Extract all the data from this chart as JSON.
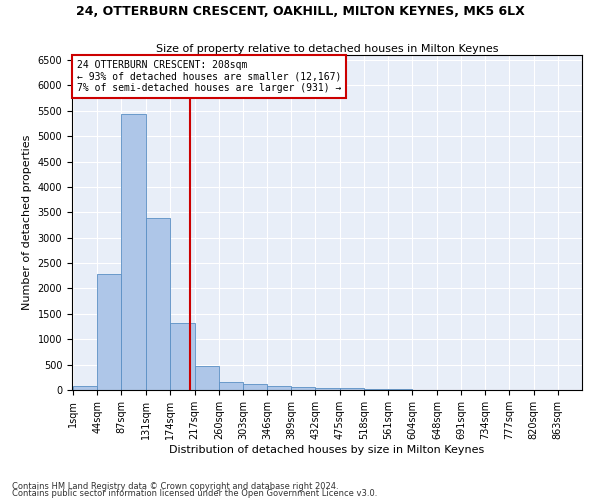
{
  "title1": "24, OTTERBURN CRESCENT, OAKHILL, MILTON KEYNES, MK5 6LX",
  "title2": "Size of property relative to detached houses in Milton Keynes",
  "xlabel": "Distribution of detached houses by size in Milton Keynes",
  "ylabel": "Number of detached properties",
  "property_size": 208,
  "annotation_line1": "24 OTTERBURN CRESCENT: 208sqm",
  "annotation_line2": "← 93% of detached houses are smaller (12,167)",
  "annotation_line3": "7% of semi-detached houses are larger (931) →",
  "footer1": "Contains HM Land Registry data © Crown copyright and database right 2024.",
  "footer2": "Contains public sector information licensed under the Open Government Licence v3.0.",
  "bin_edges": [
    1,
    44,
    87,
    131,
    174,
    217,
    260,
    303,
    346,
    389,
    432,
    475,
    518,
    561,
    604,
    648,
    691,
    734,
    777,
    820,
    863
  ],
  "bar_heights": [
    75,
    2280,
    5430,
    3390,
    1320,
    480,
    160,
    110,
    75,
    50,
    35,
    30,
    15,
    10,
    5,
    5,
    3,
    2,
    1,
    1
  ],
  "bar_color": "#aec6e8",
  "bar_edge_color": "#5a8fc4",
  "vline_color": "#cc0000",
  "vline_x": 208,
  "ylim": [
    0,
    6600
  ],
  "yticks": [
    0,
    500,
    1000,
    1500,
    2000,
    2500,
    3000,
    3500,
    4000,
    4500,
    5000,
    5500,
    6000,
    6500
  ],
  "bg_color": "#e8eef8",
  "annotation_box_color": "#ffffff",
  "annotation_box_edge": "#cc0000",
  "title1_fontsize": 9,
  "title2_fontsize": 8,
  "axis_label_fontsize": 8,
  "tick_fontsize": 7,
  "annotation_fontsize": 7,
  "footer_fontsize": 6
}
